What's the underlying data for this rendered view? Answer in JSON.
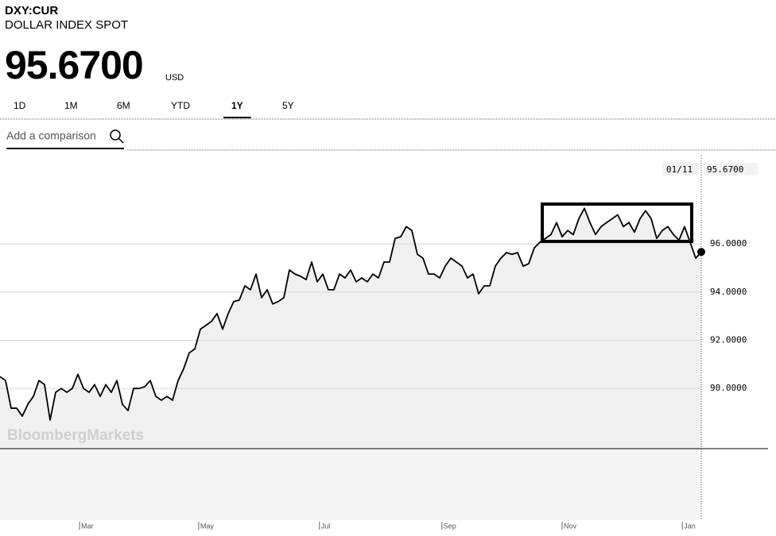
{
  "header": {
    "ticker": "DXY:CUR",
    "name": "DOLLAR INDEX SPOT",
    "price": "95.6700",
    "currency": "USD"
  },
  "tabs": [
    "1D",
    "1M",
    "6M",
    "YTD",
    "1Y",
    "5Y"
  ],
  "active_tab": 4,
  "search": {
    "placeholder": "Add a comparison"
  },
  "watermark": "BloombergMarkets",
  "chart_data": {
    "type": "line",
    "series": [
      {
        "color": "#000000",
        "fill": "#f0f0f0",
        "values": [
          90.49,
          90.33,
          89.18,
          89.18,
          88.85,
          89.34,
          89.67,
          90.33,
          90.16,
          88.69,
          89.84,
          90.0,
          89.84,
          90.0,
          90.59,
          90.0,
          89.84,
          90.16,
          89.67,
          90.16,
          89.84,
          90.33,
          89.34,
          89.08,
          90.0,
          90.0,
          90.07,
          90.33,
          89.67,
          89.51,
          89.67,
          89.51,
          90.33,
          90.82,
          91.48,
          91.64,
          92.46,
          92.62,
          92.79,
          93.11,
          92.46,
          93.11,
          93.61,
          93.67,
          94.26,
          94.1,
          94.75,
          93.77,
          94.1,
          93.51,
          93.61,
          93.77,
          94.92,
          94.75,
          94.66,
          94.52,
          95.25,
          94.43,
          94.75,
          94.1,
          94.1,
          94.75,
          94.59,
          94.92,
          94.43,
          94.59,
          94.43,
          94.75,
          94.59,
          95.25,
          95.25,
          96.23,
          96.3,
          96.72,
          96.56,
          95.57,
          95.41,
          94.75,
          94.75,
          94.59,
          95.08,
          95.41,
          95.25,
          95.08,
          94.59,
          94.75,
          93.93,
          94.26,
          94.26,
          95.08,
          95.41,
          95.64,
          95.57,
          95.64,
          95.08,
          95.18,
          95.84,
          96.07,
          96.23,
          96.39,
          96.89,
          96.3,
          96.56,
          96.39,
          97.05,
          97.48,
          96.89,
          96.39,
          96.72,
          96.89,
          97.05,
          97.21,
          96.72,
          96.89,
          96.49,
          97.05,
          97.38,
          97.05,
          96.23,
          96.56,
          96.72,
          96.39,
          96.16,
          96.72,
          96.07,
          95.41,
          95.67
        ]
      }
    ],
    "xlim": [
      0,
      126
    ],
    "xticks": [
      {
        "value": 14.3,
        "label": "Mar"
      },
      {
        "value": 35.7,
        "label": "May"
      },
      {
        "value": 57.4,
        "label": "Jul"
      },
      {
        "value": 79.4,
        "label": "Sep"
      },
      {
        "value": 101,
        "label": "Nov"
      },
      {
        "value": 122.6,
        "label": "Jan"
      }
    ],
    "ylim": [
      87.5,
      99.8
    ],
    "yticks": [
      {
        "value": 90,
        "label": "90.0000"
      },
      {
        "value": 92,
        "label": "92.0000"
      },
      {
        "value": 94,
        "label": "94.0000"
      },
      {
        "value": 96,
        "label": "96.0000"
      }
    ],
    "last_value_label": "95.6700",
    "last_date": "01/11",
    "grid": true
  }
}
